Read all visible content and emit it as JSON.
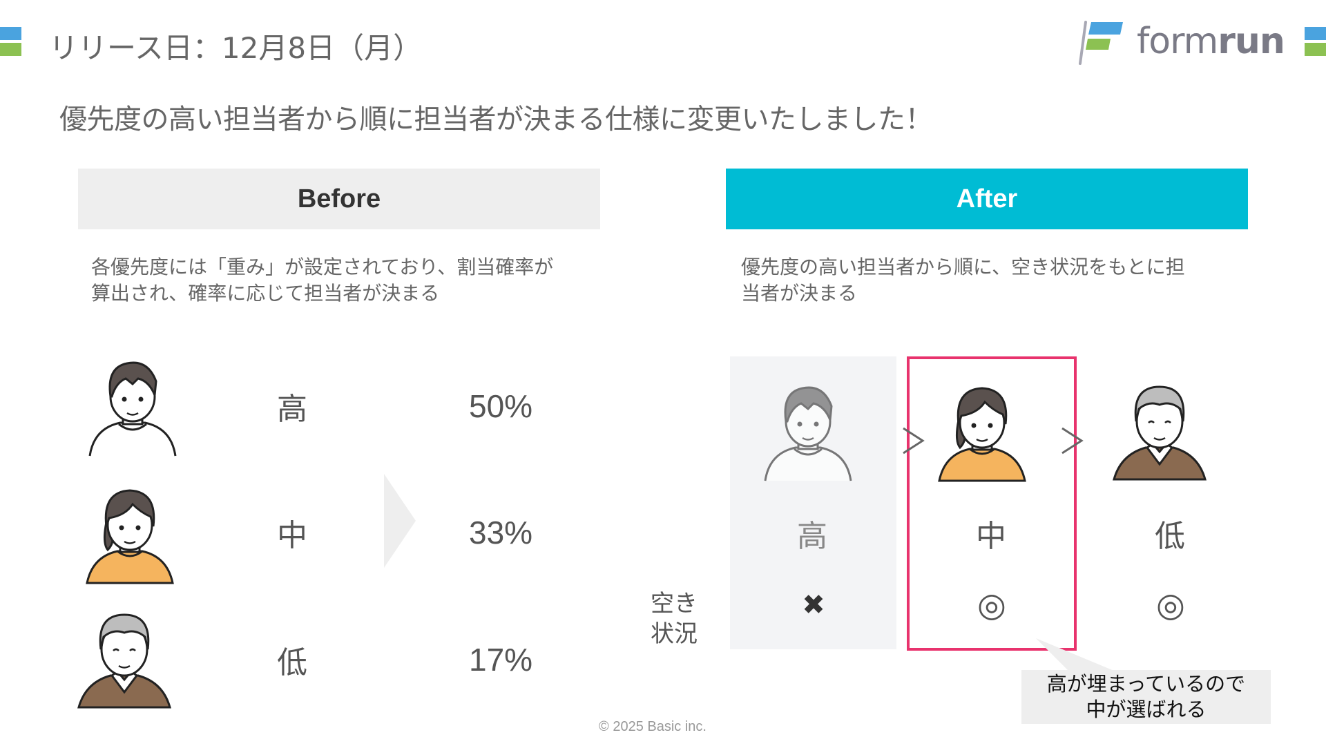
{
  "header": {
    "title": "リリース日：12月8日（月）",
    "subtitle": "優先度の高い担当者から順に担当者が決まる仕様に変更いたしました！",
    "logo_text_light": "form",
    "logo_text_bold": "run"
  },
  "colors": {
    "accent_blue": "#4aa3df",
    "accent_green": "#8cc152",
    "after_header": "#00bcd4",
    "highlight": "#e8336d",
    "before_header": "#eeeeee"
  },
  "before": {
    "label": "Before",
    "description_lines": [
      "各優先度には「重み」が設定されており、割当確率が",
      "算出され、確率に応じて担当者が決まる"
    ],
    "rows": [
      {
        "avatar": "man-avatar",
        "priority": "高",
        "percent": "50%"
      },
      {
        "avatar": "woman-avatar",
        "priority": "中",
        "percent": "33%"
      },
      {
        "avatar": "elder-avatar",
        "priority": "低",
        "percent": "17%"
      }
    ]
  },
  "after": {
    "label": "After",
    "description_lines": [
      "優先度の高い担当者から順に、空き状況をもとに担",
      "当者が決まる"
    ],
    "availability_label_lines": [
      "空き",
      "状況"
    ],
    "columns": [
      {
        "avatar": "man-avatar",
        "priority": "高",
        "availability": "✖",
        "available": false
      },
      {
        "avatar": "woman-avatar",
        "priority": "中",
        "availability": "◎",
        "available": true,
        "selected": true
      },
      {
        "avatar": "elder-avatar",
        "priority": "低",
        "availability": "◎",
        "available": true
      }
    ],
    "callout_lines": [
      "高が埋まっているので",
      "中が選ばれる"
    ]
  },
  "footer": {
    "copyright": "© 2025 Basic inc."
  }
}
